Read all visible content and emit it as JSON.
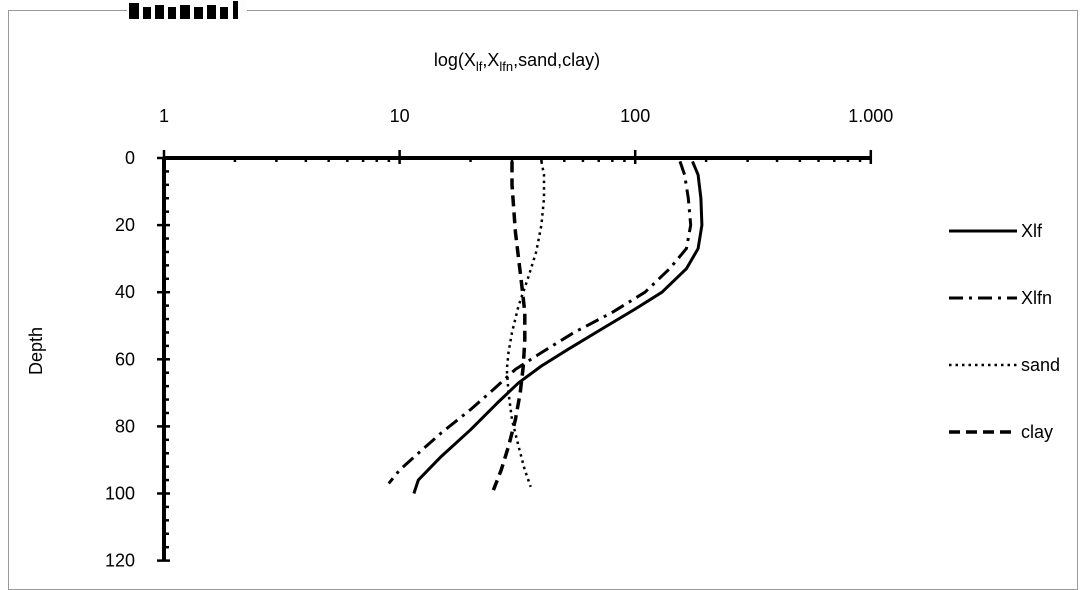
{
  "chart_data": {
    "type": "line",
    "orientation": "depth-profile",
    "x_scale": "log",
    "x_axis_position": "top",
    "y_inverted": true,
    "xlabel": "log(Xlf,Xlfn,sand,clay)",
    "xlabel_parts": {
      "prefix": "log(X",
      "sub1": "lf",
      "mid1": ",X",
      "sub2": "lfn",
      "suffix": ",sand,clay)"
    },
    "ylabel": "Depth",
    "xlim": [
      1,
      1000
    ],
    "ylim": [
      0,
      120
    ],
    "x_ticks": [
      {
        "value": 1,
        "label": "1"
      },
      {
        "value": 10,
        "label": "10"
      },
      {
        "value": 100,
        "label": "100"
      },
      {
        "value": 1000,
        "label": "1.000"
      }
    ],
    "y_ticks": [
      {
        "value": 0,
        "label": "0"
      },
      {
        "value": 20,
        "label": "20"
      },
      {
        "value": 40,
        "label": "40"
      },
      {
        "value": 60,
        "label": "60"
      },
      {
        "value": 80,
        "label": "80"
      },
      {
        "value": 100,
        "label": "100"
      },
      {
        "value": 120,
        "label": "120"
      }
    ],
    "grid": false,
    "legend_position": "right",
    "series": [
      {
        "name": "Xlf",
        "style": "solid",
        "points": [
          [
            175,
            1
          ],
          [
            185,
            5
          ],
          [
            190,
            12
          ],
          [
            192,
            20
          ],
          [
            185,
            27
          ],
          [
            165,
            33
          ],
          [
            130,
            40
          ],
          [
            100,
            45
          ],
          [
            72,
            51
          ],
          [
            52,
            57
          ],
          [
            40,
            62
          ],
          [
            32,
            67
          ],
          [
            26,
            73
          ],
          [
            20,
            81
          ],
          [
            15,
            89
          ],
          [
            12,
            96
          ],
          [
            11.5,
            100
          ]
        ]
      },
      {
        "name": "Xlfn",
        "style": "dashdot",
        "points": [
          [
            155,
            1
          ],
          [
            162,
            5
          ],
          [
            168,
            12
          ],
          [
            172,
            20
          ],
          [
            165,
            27
          ],
          [
            140,
            33
          ],
          [
            110,
            40
          ],
          [
            80,
            46
          ],
          [
            55,
            52
          ],
          [
            40,
            58
          ],
          [
            31,
            63
          ],
          [
            25,
            69
          ],
          [
            20,
            75
          ],
          [
            15,
            82
          ],
          [
            12,
            88
          ],
          [
            10,
            93
          ],
          [
            9,
            97
          ]
        ]
      },
      {
        "name": "sand",
        "style": "dotted",
        "points": [
          [
            40,
            1
          ],
          [
            41,
            5
          ],
          [
            41,
            12
          ],
          [
            40,
            20
          ],
          [
            38,
            28
          ],
          [
            35,
            36
          ],
          [
            32,
            44
          ],
          [
            30,
            52
          ],
          [
            29,
            58
          ],
          [
            28.5,
            63
          ],
          [
            29,
            70
          ],
          [
            30,
            78
          ],
          [
            32,
            86
          ],
          [
            34,
            93
          ],
          [
            36,
            98
          ]
        ]
      },
      {
        "name": "clay",
        "style": "dashed",
        "points": [
          [
            30,
            1
          ],
          [
            30,
            8
          ],
          [
            30.5,
            15
          ],
          [
            31,
            22
          ],
          [
            32,
            30
          ],
          [
            33,
            38
          ],
          [
            34,
            46
          ],
          [
            34,
            54
          ],
          [
            33.5,
            62
          ],
          [
            32.5,
            70
          ],
          [
            31,
            78
          ],
          [
            29,
            86
          ],
          [
            27,
            93
          ],
          [
            25,
            99
          ]
        ]
      }
    ]
  }
}
